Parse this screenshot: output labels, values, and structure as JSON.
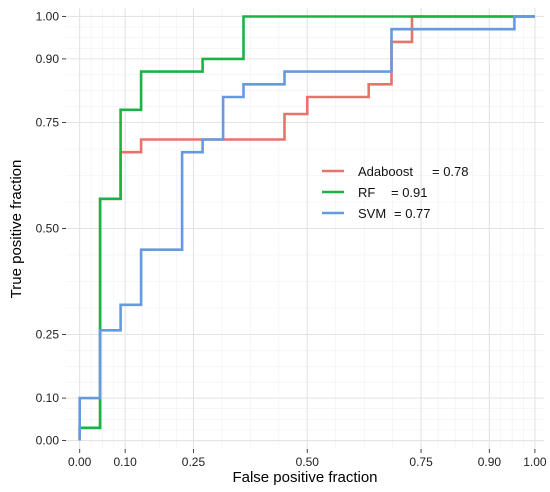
{
  "chart_data": {
    "type": "line",
    "title": "",
    "xlabel": "False positive fraction",
    "ylabel": "True positive fraction",
    "xlim": [
      -0.03,
      1.02
    ],
    "ylim": [
      -0.02,
      1.02
    ],
    "x_ticks": [
      0.0,
      0.1,
      0.25,
      0.5,
      0.75,
      0.9,
      1.0
    ],
    "x_tick_labels": [
      "0.00",
      "0.10",
      "0.25",
      "0.50",
      "0.75",
      "0.90",
      "1.00"
    ],
    "y_ticks": [
      0.0,
      0.1,
      0.25,
      0.5,
      0.75,
      0.9,
      1.0
    ],
    "y_tick_labels": [
      "0.00",
      "0.10",
      "0.25",
      "0.50",
      "0.75",
      "0.90",
      "1.00"
    ],
    "grid": true,
    "legend_position": "center-right",
    "series": [
      {
        "name": "Adaboost",
        "legend_label": "Adaboost",
        "legend_value": "= 0.78",
        "color": "#e8736c",
        "points": [
          [
            0,
            0
          ],
          [
            0,
            0.03
          ],
          [
            0.045,
            0.03
          ],
          [
            0.045,
            0.57
          ],
          [
            0.09,
            0.57
          ],
          [
            0.09,
            0.68
          ],
          [
            0.135,
            0.68
          ],
          [
            0.135,
            0.71
          ],
          [
            0.45,
            0.71
          ],
          [
            0.45,
            0.77
          ],
          [
            0.5,
            0.77
          ],
          [
            0.5,
            0.81
          ],
          [
            0.635,
            0.81
          ],
          [
            0.635,
            0.84
          ],
          [
            0.685,
            0.84
          ],
          [
            0.685,
            0.94
          ],
          [
            0.73,
            0.94
          ],
          [
            0.73,
            1.0
          ],
          [
            1.0,
            1.0
          ]
        ]
      },
      {
        "name": "RF",
        "legend_label": "RF",
        "legend_value": "= 0.91",
        "color": "#1db246",
        "points": [
          [
            0,
            0
          ],
          [
            0,
            0.03
          ],
          [
            0.045,
            0.03
          ],
          [
            0.045,
            0.57
          ],
          [
            0.09,
            0.57
          ],
          [
            0.09,
            0.78
          ],
          [
            0.135,
            0.78
          ],
          [
            0.135,
            0.87
          ],
          [
            0.27,
            0.87
          ],
          [
            0.27,
            0.9
          ],
          [
            0.36,
            0.9
          ],
          [
            0.36,
            1.0
          ],
          [
            1.0,
            1.0
          ]
        ]
      },
      {
        "name": "SVM",
        "legend_label": "SVM",
        "legend_value": "= 0.77",
        "color": "#6699e0",
        "points": [
          [
            0,
            0
          ],
          [
            0,
            0.1
          ],
          [
            0.045,
            0.1
          ],
          [
            0.045,
            0.26
          ],
          [
            0.09,
            0.26
          ],
          [
            0.09,
            0.32
          ],
          [
            0.135,
            0.32
          ],
          [
            0.135,
            0.45
          ],
          [
            0.225,
            0.45
          ],
          [
            0.225,
            0.68
          ],
          [
            0.27,
            0.68
          ],
          [
            0.27,
            0.71
          ],
          [
            0.315,
            0.71
          ],
          [
            0.315,
            0.81
          ],
          [
            0.36,
            0.81
          ],
          [
            0.36,
            0.84
          ],
          [
            0.45,
            0.84
          ],
          [
            0.45,
            0.87
          ],
          [
            0.685,
            0.87
          ],
          [
            0.685,
            0.97
          ],
          [
            0.955,
            0.97
          ],
          [
            0.955,
            1.0
          ],
          [
            1.0,
            1.0
          ]
        ]
      }
    ]
  }
}
